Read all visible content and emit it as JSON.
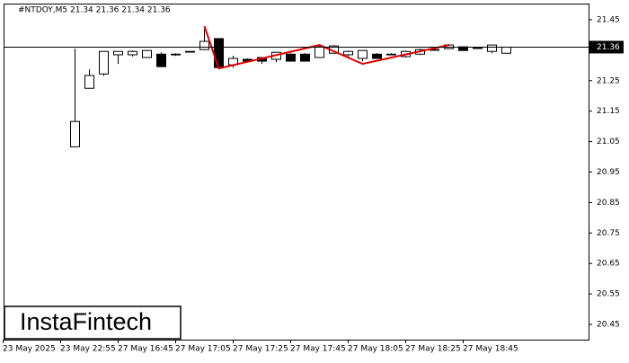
{
  "chart_data": {
    "type": "candlestick",
    "title": "#NTDOY,M5  21.34 21.36 21.34 21.36",
    "watermark": "InstaFintech",
    "categories": [
      "23 May 2025",
      null,
      null,
      null,
      "23 May 22:55",
      null,
      null,
      null,
      "27 May 16:45",
      null,
      null,
      null,
      "27 May 17:05",
      null,
      null,
      null,
      "27 May 17:25",
      null,
      null,
      null,
      "27 May 17:45",
      null,
      null,
      null,
      "27 May 18:05",
      null,
      null,
      null,
      "27 May 18:25",
      null,
      null,
      null,
      "27 May 18:45",
      null,
      null,
      null
    ],
    "series": [
      {
        "up_color": "#ffffff",
        "down_color": "#000000",
        "outline_color": "#000000",
        "open": [
          null,
          null,
          null,
          null,
          null,
          21.033,
          21.225,
          21.272,
          21.335,
          21.335,
          21.326,
          21.337,
          21.337,
          21.346,
          21.352,
          21.388,
          21.302,
          21.32,
          21.326,
          21.32,
          21.337,
          21.337,
          21.326,
          21.34,
          21.335,
          21.323,
          21.337,
          21.337,
          21.329,
          21.337,
          21.352,
          21.355,
          21.361,
          21.358,
          21.346,
          21.34
        ],
        "high": [
          null,
          null,
          null,
          null,
          null,
          21.355,
          21.287,
          21.346,
          21.346,
          21.349,
          21.349,
          21.343,
          21.34,
          21.346,
          21.42,
          21.388,
          21.332,
          21.323,
          21.326,
          21.343,
          21.34,
          21.34,
          21.364,
          21.367,
          21.349,
          21.349,
          21.34,
          21.34,
          21.349,
          21.355,
          21.355,
          21.37,
          21.361,
          21.361,
          21.367,
          21.36
        ],
        "low": [
          null,
          null,
          null,
          null,
          null,
          21.033,
          21.225,
          21.266,
          21.305,
          21.329,
          21.326,
          21.296,
          21.331,
          21.343,
          21.352,
          21.293,
          21.293,
          21.311,
          21.305,
          21.311,
          21.314,
          21.314,
          21.326,
          21.34,
          21.329,
          21.314,
          21.323,
          21.334,
          21.326,
          21.334,
          21.349,
          21.355,
          21.349,
          21.355,
          21.34,
          21.34
        ],
        "close": [
          null,
          null,
          null,
          null,
          null,
          21.116,
          21.267,
          21.346,
          21.346,
          21.346,
          21.349,
          21.296,
          21.337,
          21.346,
          21.379,
          21.293,
          21.323,
          21.314,
          21.314,
          21.343,
          21.314,
          21.314,
          21.361,
          21.364,
          21.346,
          21.349,
          21.323,
          21.337,
          21.346,
          21.352,
          21.352,
          21.367,
          21.349,
          21.358,
          21.367,
          21.36
        ]
      }
    ],
    "pattern": {
      "color": "#e00000",
      "x": [
        14,
        15,
        22,
        25,
        31
      ],
      "values": [
        21.429,
        21.29,
        21.367,
        21.305,
        21.367
      ]
    },
    "current_price": 21.36,
    "ylim": [
      20.4,
      21.5
    ],
    "yticks": [
      21.45,
      21.35,
      21.25,
      21.15,
      21.05,
      20.95,
      20.85,
      20.75,
      20.65,
      20.55,
      20.45
    ]
  }
}
